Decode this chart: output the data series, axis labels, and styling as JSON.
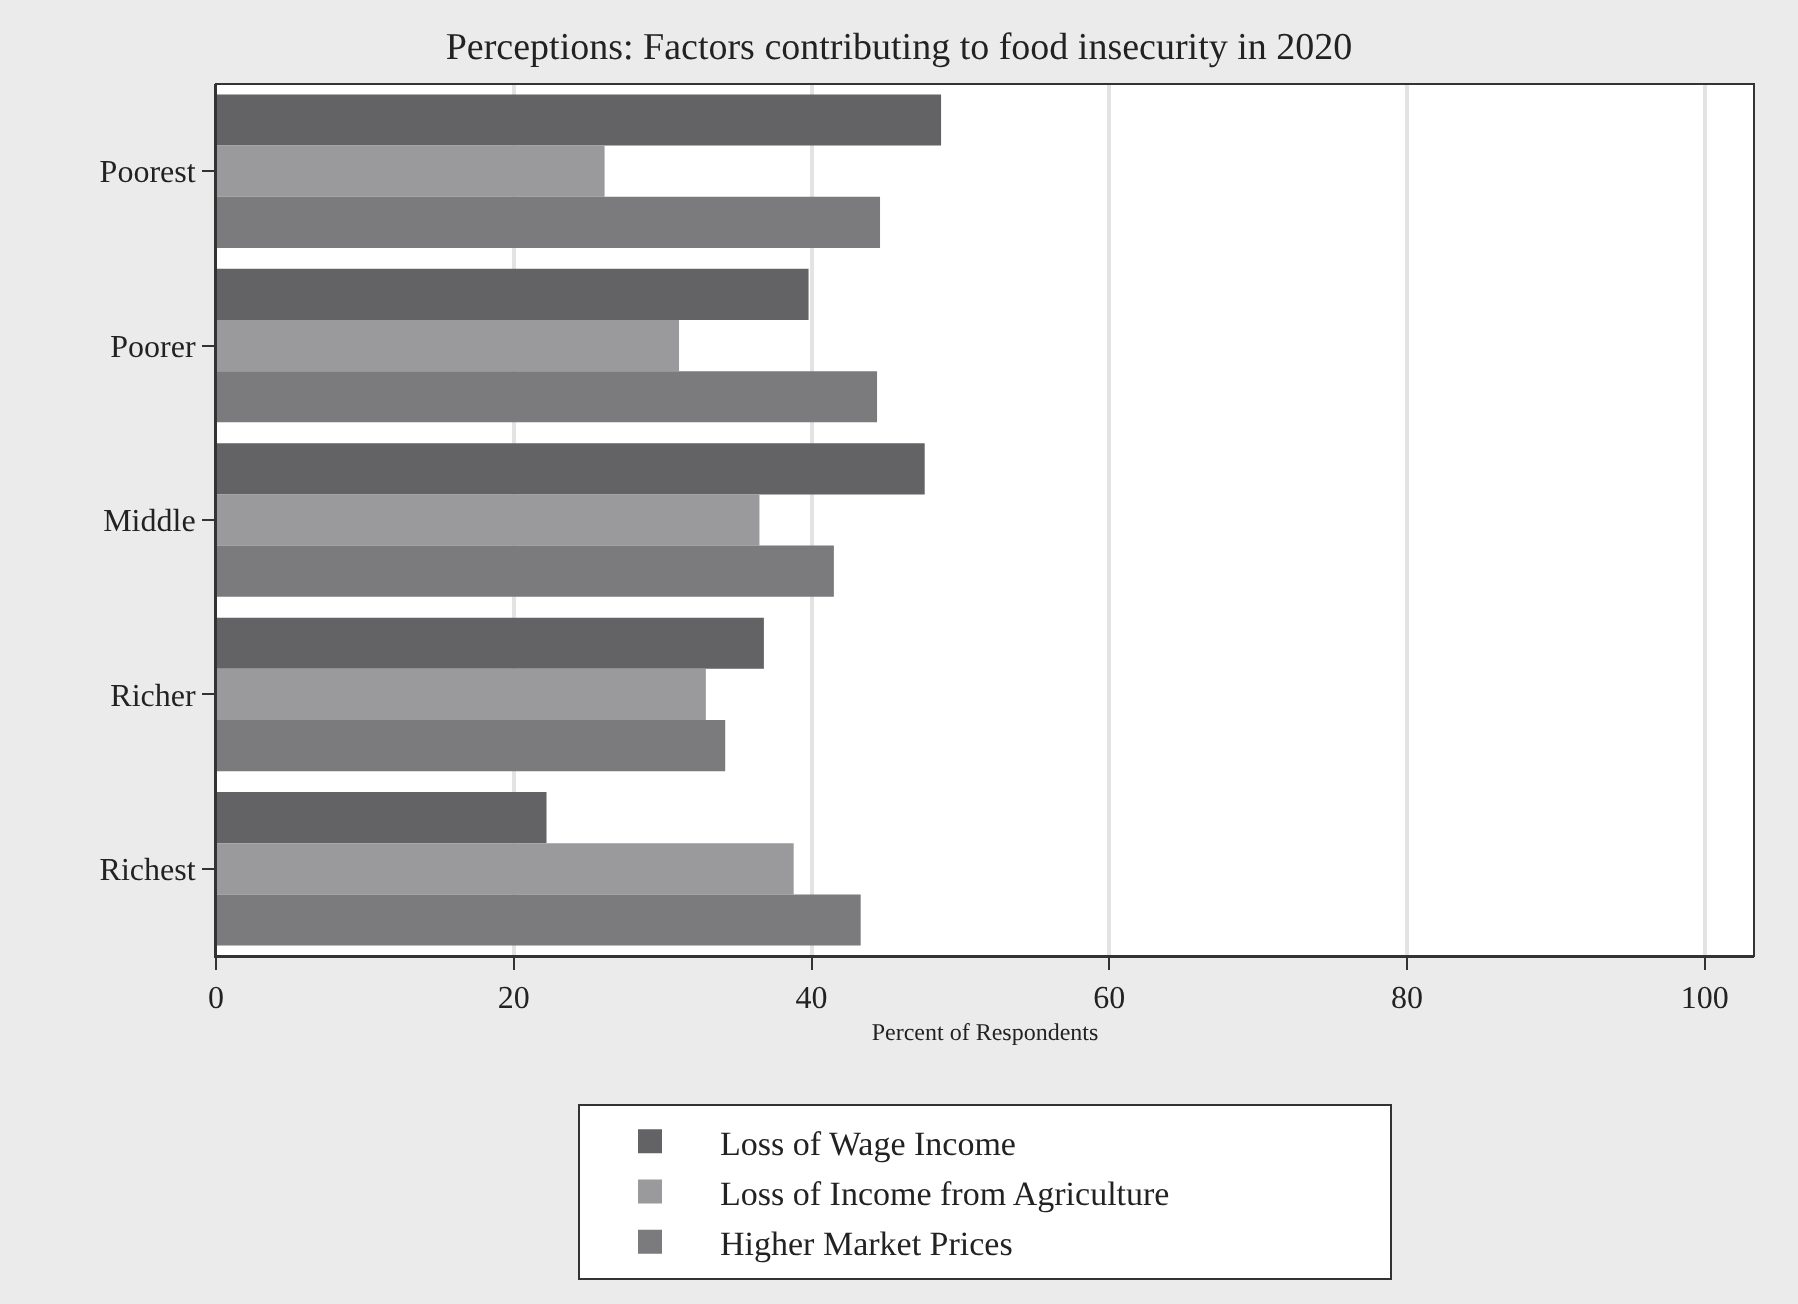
{
  "chart_data": {
    "type": "bar",
    "orientation": "horizontal",
    "title": "Perceptions: Factors contributing to food insecurity in 2020",
    "xlabel": "Percent of Respondents",
    "categories": [
      "Poorest",
      "Poorer",
      "Middle",
      "Richer",
      "Richest"
    ],
    "series": [
      {
        "name": "Loss of Wage Income",
        "color": "#636366",
        "values": [
          48.7,
          39.8,
          47.6,
          36.8,
          22.2
        ]
      },
      {
        "name": "Loss of Income from Agriculture",
        "color": "#9a9a9c",
        "values": [
          26.1,
          31.1,
          36.5,
          32.9,
          38.8
        ]
      },
      {
        "name": "Higher Market Prices",
        "color": "#7b7b7e",
        "values": [
          44.6,
          44.4,
          41.5,
          34.2,
          43.3
        ]
      }
    ],
    "xlim": [
      0,
      103.3
    ],
    "xticks": [
      0,
      20,
      40,
      60,
      80,
      100
    ],
    "grid": "x",
    "legend": "bottom"
  }
}
